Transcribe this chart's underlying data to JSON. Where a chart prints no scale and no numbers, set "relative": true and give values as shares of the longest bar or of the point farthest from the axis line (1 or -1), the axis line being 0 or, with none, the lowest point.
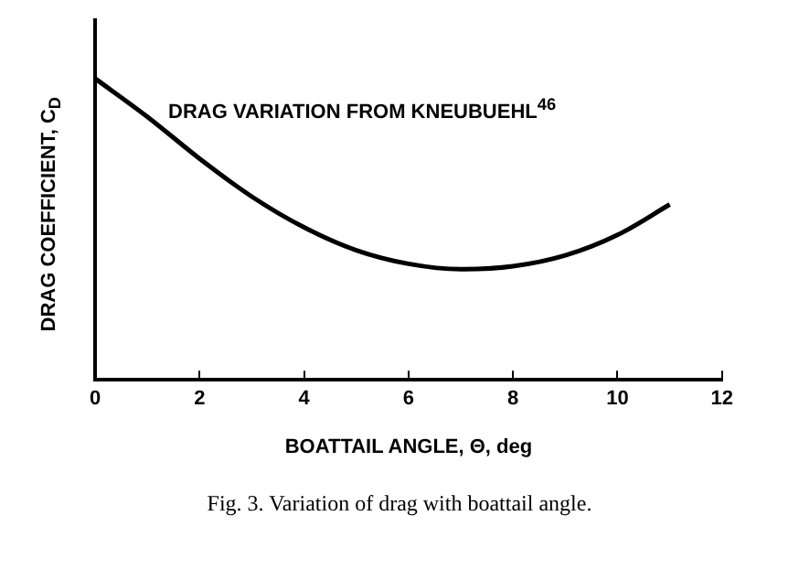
{
  "chart_data": {
    "type": "line",
    "relative": true,
    "xlabel": "BOATTAIL ANGLE, Θ, deg",
    "ylabel": "DRAG COEFFICIENT, C$_{D}$",
    "x": [
      0,
      1,
      2,
      3,
      4,
      5,
      6,
      7,
      8,
      9,
      10,
      11
    ],
    "series": [
      {
        "color": "#000000",
        "values": [
          1,
          0.873,
          0.734,
          0.608,
          0.506,
          0.43,
          0.385,
          0.367,
          0.377,
          0.413,
          0.481,
          0.582
        ]
      }
    ],
    "xlim": [
      0,
      12
    ],
    "xticks": [
      0,
      2,
      4,
      6,
      8,
      10,
      12
    ],
    "grid": false,
    "legend": false,
    "marker": "none",
    "line_style": "solid",
    "annotations": [
      "DRAG VARIATION  FROM KNEUBUEHL$^{46}$",
      "Fig. 3. Variation of drag with boattail angle."
    ]
  }
}
